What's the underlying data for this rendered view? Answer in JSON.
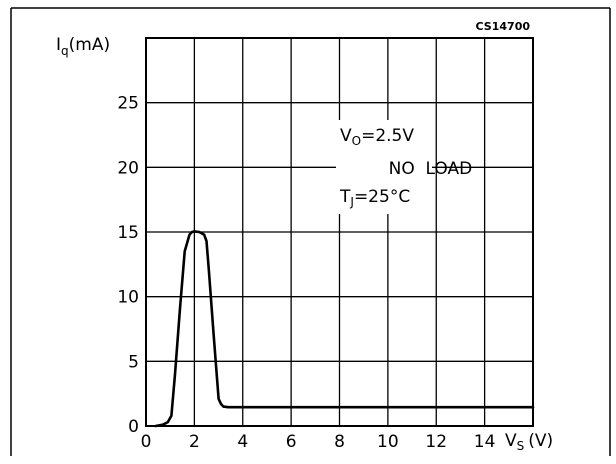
{
  "chart_data": {
    "type": "line",
    "figure_code": "CS14700",
    "ylabel": {
      "symbol": "I",
      "sub": "q",
      "unit": "(mA)"
    },
    "xlabel": {
      "symbol": "V",
      "sub": "S",
      "unit": "(V)"
    },
    "xlim": [
      0,
      16
    ],
    "ylim": [
      0,
      30
    ],
    "x_ticks": [
      0,
      2,
      4,
      6,
      8,
      10,
      12,
      14
    ],
    "y_ticks": [
      0,
      5,
      10,
      15,
      20,
      25
    ],
    "x_grid": [
      0,
      2,
      4,
      6,
      8,
      10,
      12,
      14,
      16
    ],
    "y_grid": [
      0,
      5,
      10,
      15,
      20,
      25,
      30
    ],
    "grid": true,
    "annotations": [
      {
        "symbol": "V",
        "sub": "O",
        "text": "=2.5V"
      },
      {
        "symbol": "",
        "sub": "",
        "text": "NO  LOAD"
      },
      {
        "symbol": "T",
        "sub": "J",
        "text": "=25°C"
      }
    ],
    "series": [
      {
        "x": [
          0.4,
          0.7,
          0.9,
          1.05,
          1.2,
          1.4,
          1.6,
          1.8,
          1.9,
          2.0,
          2.2,
          2.4,
          2.5,
          2.6,
          2.8,
          3.0,
          3.1,
          3.2,
          3.4,
          3.6,
          4,
          6,
          8,
          10,
          12,
          14,
          16
        ],
        "y": [
          0,
          0.1,
          0.3,
          0.8,
          4,
          9,
          13.5,
          14.8,
          15.0,
          15.05,
          15.0,
          14.8,
          14.3,
          12,
          7,
          2.1,
          1.7,
          1.5,
          1.45,
          1.45,
          1.45,
          1.45,
          1.45,
          1.45,
          1.45,
          1.45,
          1.45
        ]
      }
    ]
  }
}
